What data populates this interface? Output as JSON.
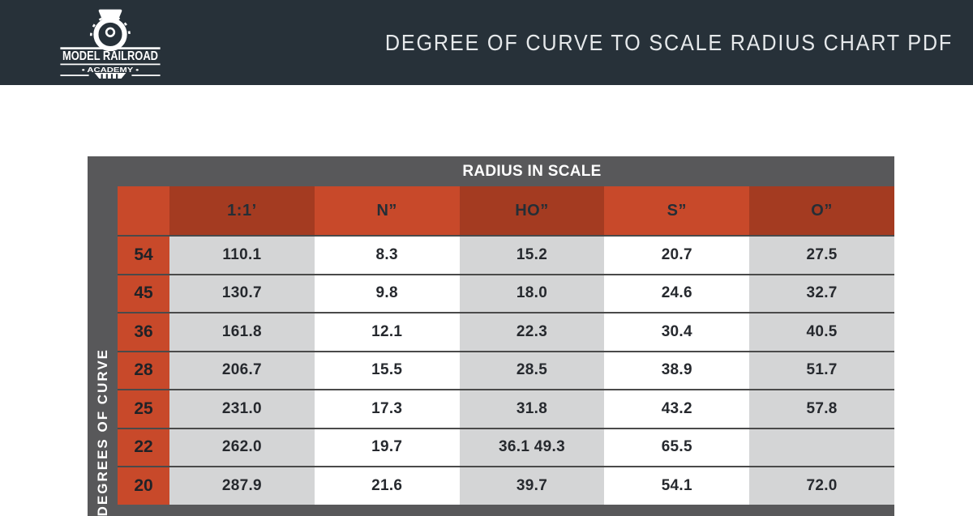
{
  "header": {
    "logo_line1": "MODEL RAILROAD",
    "logo_line2": "• ACADEMY •",
    "title": "DEGREE OF CURVE TO SCALE RADIUS CHART PDF"
  },
  "chart_data": {
    "type": "table",
    "title": "RADIUS IN SCALE",
    "row_axis_label": "DEGREES OF CURVE",
    "columns": [
      "1:1’",
      "N”",
      "HO”",
      "S”",
      "O”"
    ],
    "rows": [
      {
        "degree": "54",
        "values": [
          "110.1",
          "8.3",
          "15.2",
          "20.7",
          "27.5"
        ]
      },
      {
        "degree": "45",
        "values": [
          "130.7",
          "9.8",
          "18.0",
          "24.6",
          "32.7"
        ]
      },
      {
        "degree": "36",
        "values": [
          "161.8",
          "12.1",
          "22.3",
          "30.4",
          "40.5"
        ]
      },
      {
        "degree": "28",
        "values": [
          "206.7",
          "15.5",
          "28.5",
          "38.9",
          "51.7"
        ]
      },
      {
        "degree": "25",
        "values": [
          "231.0",
          "17.3",
          "31.8",
          "43.2",
          "57.8"
        ]
      },
      {
        "degree": "22",
        "values": [
          "262.0",
          "19.7",
          "36.1 49.3",
          "65.5",
          ""
        ]
      },
      {
        "degree": "20",
        "values": [
          "287.9",
          "21.6",
          "39.7",
          "54.1",
          "72.0"
        ]
      }
    ]
  },
  "colors": {
    "banner_navy": "#273139",
    "frame_gray": "#58585a",
    "orange": "#c8492a",
    "dark_red": "#a43b21",
    "cell_gray": "#d4d5d6",
    "cell_white": "#ffffff",
    "divider": "#4a4a4a",
    "title_text": "#e6e9eb"
  }
}
